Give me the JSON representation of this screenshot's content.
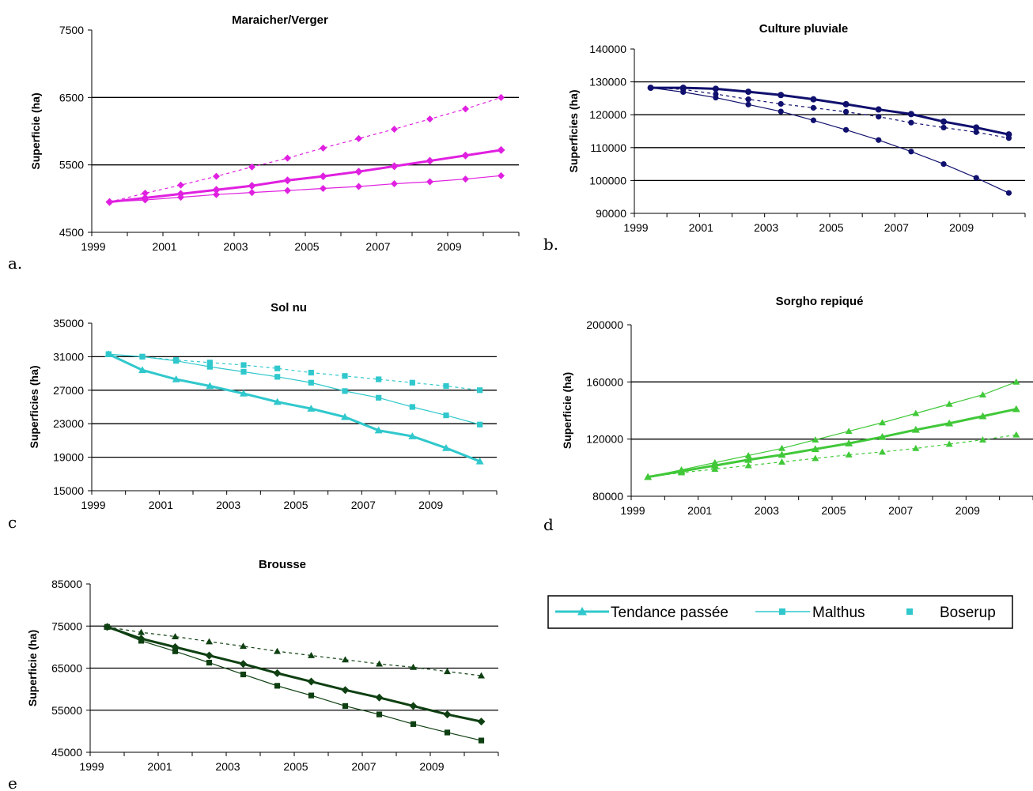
{
  "chart_data": [
    {
      "id": "a",
      "panel_label": "a.",
      "type": "line",
      "title": "Maraicher/Verger",
      "ylabel": "Superficie (ha)",
      "xlabel": "",
      "ylim": [
        4500,
        7500
      ],
      "yticks": [
        4500,
        5500,
        6500,
        7500
      ],
      "xticks": [
        "1999",
        "2001",
        "2003",
        "2005",
        "2007",
        "2009"
      ],
      "color": "#e020e0",
      "x": [
        1999,
        2000,
        2001,
        2002,
        2003,
        2004,
        2005,
        2006,
        2007,
        2008,
        2009,
        2010
      ],
      "series": [
        {
          "values": [
            4950,
            5010,
            5070,
            5130,
            5190,
            5270,
            5330,
            5400,
            5480,
            5560,
            5640,
            5720
          ],
          "style": "thick",
          "marker": "diamond"
        },
        {
          "values": [
            4950,
            4980,
            5020,
            5060,
            5090,
            5120,
            5150,
            5180,
            5220,
            5250,
            5290,
            5340
          ],
          "style": "thin",
          "marker": "diamond"
        },
        {
          "values": [
            4950,
            5080,
            5200,
            5330,
            5470,
            5600,
            5750,
            5890,
            6030,
            6180,
            6330,
            6500
          ],
          "style": "dashed",
          "marker": "diamond"
        }
      ]
    },
    {
      "id": "b",
      "panel_label": "b.",
      "type": "line",
      "title": "Culture pluviale",
      "ylabel": "Superficies (ha)",
      "xlabel": "",
      "ylim": [
        90000,
        140000
      ],
      "yticks": [
        90000,
        100000,
        110000,
        120000,
        130000,
        140000
      ],
      "xticks": [
        "1999",
        "2001",
        "2003",
        "2005",
        "2007",
        "2009"
      ],
      "color": "#10106e",
      "x": [
        1999,
        2000,
        2001,
        2002,
        2003,
        2004,
        2005,
        2006,
        2007,
        2008,
        2009,
        2010
      ],
      "series": [
        {
          "values": [
            128200,
            128200,
            127900,
            127000,
            126000,
            124700,
            123200,
            121600,
            120200,
            117900,
            116100,
            114000
          ],
          "style": "thick",
          "marker": "circle"
        },
        {
          "values": [
            128200,
            126900,
            125200,
            123100,
            121000,
            118300,
            115400,
            112300,
            108800,
            105000,
            100800,
            96200
          ],
          "style": "thin",
          "marker": "circle"
        },
        {
          "values": [
            128200,
            127700,
            126300,
            124700,
            123300,
            122100,
            120900,
            119400,
            117600,
            116100,
            114700,
            112900
          ],
          "style": "dashed",
          "marker": "circle"
        }
      ]
    },
    {
      "id": "c",
      "panel_label": "c",
      "type": "line",
      "title": "Sol nu",
      "ylabel": "Superficies (ha)",
      "xlabel": "",
      "ylim": [
        15000,
        35000
      ],
      "yticks": [
        15000,
        19000,
        23000,
        27000,
        31000,
        35000
      ],
      "xticks": [
        "1999",
        "2001",
        "2003",
        "2005",
        "2007",
        "2009"
      ],
      "color": "#30c8cc",
      "x": [
        1999,
        2000,
        2001,
        2002,
        2003,
        2004,
        2005,
        2006,
        2007,
        2008,
        2009,
        2010
      ],
      "series": [
        {
          "values": [
            31300,
            29400,
            28300,
            27500,
            26600,
            25600,
            24800,
            23800,
            22200,
            21500,
            20100,
            18500
          ],
          "style": "thick",
          "marker": "triangle"
        },
        {
          "values": [
            31300,
            31000,
            30500,
            29800,
            29200,
            28600,
            27900,
            26900,
            26100,
            25000,
            24000,
            22900
          ],
          "style": "thin",
          "marker": "square"
        },
        {
          "values": [
            31300,
            31000,
            30600,
            30300,
            30000,
            29600,
            29100,
            28700,
            28300,
            27900,
            27500,
            27000
          ],
          "style": "dashed",
          "marker": "square"
        }
      ]
    },
    {
      "id": "d",
      "panel_label": "d",
      "type": "line",
      "title": "Sorgho repiqué",
      "ylabel": "Superficie (ha)",
      "xlabel": "",
      "ylim": [
        80000,
        200000
      ],
      "yticks": [
        80000,
        120000,
        160000,
        200000
      ],
      "xticks": [
        "1999",
        "2001",
        "2003",
        "2005",
        "2007",
        "2009"
      ],
      "color": "#40c838",
      "x": [
        1999,
        2000,
        2001,
        2002,
        2003,
        2004,
        2005,
        2006,
        2007,
        2008,
        2009,
        2010
      ],
      "series": [
        {
          "values": [
            93500,
            97500,
            101500,
            105500,
            109000,
            113000,
            117000,
            121500,
            126500,
            131000,
            136000,
            141000
          ],
          "style": "thick",
          "marker": "triangle"
        },
        {
          "values": [
            93500,
            98500,
            103500,
            108500,
            113500,
            119500,
            125500,
            131500,
            138000,
            144500,
            151000,
            160000
          ],
          "style": "thin",
          "marker": "triangle"
        },
        {
          "values": [
            93500,
            96500,
            99000,
            101500,
            104000,
            106500,
            109000,
            111000,
            113500,
            116500,
            119500,
            123000
          ],
          "style": "dashed",
          "marker": "triangle"
        }
      ]
    },
    {
      "id": "e",
      "panel_label": "e",
      "type": "line",
      "title": "Brousse",
      "ylabel": "Superficie (ha)",
      "xlabel": "",
      "ylim": [
        45000,
        85000
      ],
      "yticks": [
        45000,
        55000,
        65000,
        75000,
        85000
      ],
      "xticks": [
        "1999",
        "2001",
        "2003",
        "2005",
        "2007",
        "2009"
      ],
      "color": "#0f4012",
      "x": [
        1999,
        2000,
        2001,
        2002,
        2003,
        2004,
        2005,
        2006,
        2007,
        2008,
        2009,
        2010
      ],
      "series": [
        {
          "values": [
            74800,
            72000,
            70000,
            68000,
            66000,
            63800,
            61800,
            59800,
            58000,
            56000,
            54000,
            52300
          ],
          "style": "thick",
          "marker": "diamond"
        },
        {
          "values": [
            74800,
            71500,
            69000,
            66300,
            63500,
            60800,
            58500,
            56000,
            54000,
            51700,
            49700,
            47800
          ],
          "style": "thin",
          "marker": "square"
        },
        {
          "values": [
            74800,
            73500,
            72500,
            71300,
            70200,
            69000,
            68000,
            67000,
            66000,
            65200,
            64200,
            63200
          ],
          "style": "dashed",
          "marker": "triangle"
        }
      ]
    }
  ],
  "legend": {
    "color": "#30c8cc",
    "items": [
      {
        "label": "Tendance passée",
        "style": "thick",
        "marker": "triangle"
      },
      {
        "label": "Malthus",
        "style": "thin",
        "marker": "square"
      },
      {
        "label": "Boserup",
        "style": "none",
        "marker": "square"
      }
    ]
  }
}
